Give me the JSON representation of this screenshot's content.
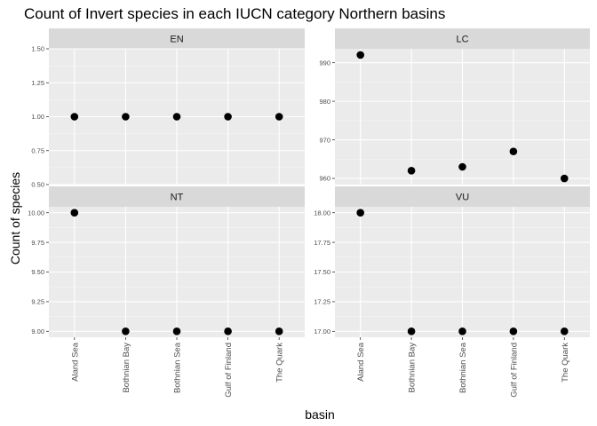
{
  "chart_data": {
    "type": "scatter",
    "title": "Count of Invert species in each IUCN category Northern basins",
    "xlabel": "basin",
    "ylabel": "Count of species",
    "categories": [
      "Aland Sea",
      "Bothnian Bay",
      "Bothnian Sea",
      "Gulf of Finland",
      "The Quark"
    ],
    "grid": true,
    "facets": [
      {
        "label": "EN",
        "values": [
          1,
          1,
          1,
          1,
          1
        ],
        "ylim": [
          0.5,
          1.5
        ],
        "yticks": [
          0.5,
          0.75,
          1.0,
          1.25,
          1.5
        ],
        "yticklabels": [
          "0.50",
          "0.75",
          "1.00",
          "1.25",
          "1.50"
        ]
      },
      {
        "label": "LC",
        "values": [
          992,
          962,
          963,
          967,
          960
        ],
        "ylim": [
          958.4,
          993.6
        ],
        "yticks": [
          960,
          970,
          980,
          990
        ],
        "yticklabels": [
          "960",
          "970",
          "980",
          "990"
        ]
      },
      {
        "label": "NT",
        "values": [
          10,
          9,
          9,
          9,
          9
        ],
        "ylim": [
          8.95,
          10.05
        ],
        "yticks": [
          9.0,
          9.25,
          9.5,
          9.75,
          10.0
        ],
        "yticklabels": [
          "9.00",
          "9.25",
          "9.50",
          "9.75",
          "10.00"
        ]
      },
      {
        "label": "VU",
        "values": [
          18,
          17,
          17,
          17,
          17
        ],
        "ylim": [
          16.95,
          18.05
        ],
        "yticks": [
          17.0,
          17.25,
          17.5,
          17.75,
          18.0
        ],
        "yticklabels": [
          "17.00",
          "17.25",
          "17.50",
          "17.75",
          "18.00"
        ]
      }
    ]
  },
  "colors": {
    "panel_background": "#ebebeb",
    "strip_background": "#d9d9d9",
    "gridline": "#ffffff",
    "point": "#000000"
  }
}
